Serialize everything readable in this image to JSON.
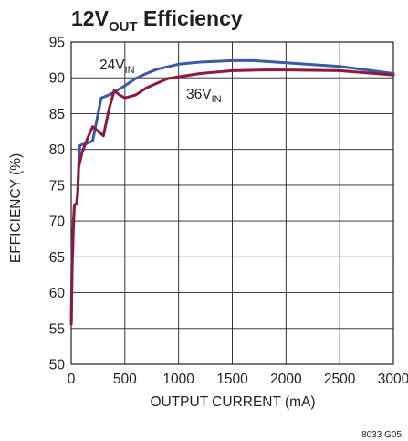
{
  "chart_data": {
    "type": "line",
    "title": {
      "main": "12V",
      "sub": "OUT",
      "rest": " Efficiency"
    },
    "xlabel": "OUTPUT CURRENT (mA)",
    "ylabel": "EFFICIENCY (%)",
    "xlim": [
      0,
      3000
    ],
    "ylim": [
      50,
      95
    ],
    "xticks": [
      "0",
      "500",
      "1000",
      "1500",
      "2000",
      "2500",
      "3000"
    ],
    "yticks": [
      "50",
      "55",
      "60",
      "65",
      "70",
      "75",
      "80",
      "85",
      "90",
      "95"
    ],
    "grid": true,
    "series": [
      {
        "name": "24V",
        "name_sub": "IN",
        "color": "#3b5aa5",
        "points": [
          [
            1,
            56
          ],
          [
            5,
            61
          ],
          [
            10,
            66
          ],
          [
            20,
            70
          ],
          [
            30,
            72.3
          ],
          [
            50,
            72.4
          ],
          [
            60,
            73.5
          ],
          [
            70,
            78
          ],
          [
            80,
            80.5
          ],
          [
            100,
            80.7
          ],
          [
            140,
            80.8
          ],
          [
            200,
            81.2
          ],
          [
            280,
            87.2
          ],
          [
            300,
            87.3
          ],
          [
            350,
            87.6
          ],
          [
            400,
            88.0
          ],
          [
            500,
            88.9
          ],
          [
            600,
            89.9
          ],
          [
            700,
            90.6
          ],
          [
            800,
            91.2
          ],
          [
            1000,
            91.9
          ],
          [
            1200,
            92.2
          ],
          [
            1500,
            92.4
          ],
          [
            1700,
            92.4
          ],
          [
            2000,
            92.1
          ],
          [
            2500,
            91.6
          ],
          [
            3000,
            90.6
          ]
        ]
      },
      {
        "name": "36V",
        "name_sub": "IN",
        "color": "#8b1a3c",
        "points": [
          [
            1,
            55.6
          ],
          [
            5,
            60
          ],
          [
            10,
            64
          ],
          [
            20,
            69
          ],
          [
            30,
            72.2
          ],
          [
            50,
            72.4
          ],
          [
            60,
            74
          ],
          [
            70,
            77.5
          ],
          [
            100,
            79.5
          ],
          [
            150,
            81.5
          ],
          [
            200,
            83.2
          ],
          [
            300,
            81.9
          ],
          [
            350,
            85.5
          ],
          [
            400,
            88.2
          ],
          [
            450,
            87.6
          ],
          [
            500,
            87.2
          ],
          [
            600,
            87.6
          ],
          [
            700,
            88.6
          ],
          [
            900,
            89.9
          ],
          [
            1200,
            90.6
          ],
          [
            1500,
            91.0
          ],
          [
            1800,
            91.1
          ],
          [
            2000,
            91.1
          ],
          [
            2500,
            91.0
          ],
          [
            3000,
            90.4
          ]
        ]
      }
    ],
    "code": "8033 G05"
  }
}
